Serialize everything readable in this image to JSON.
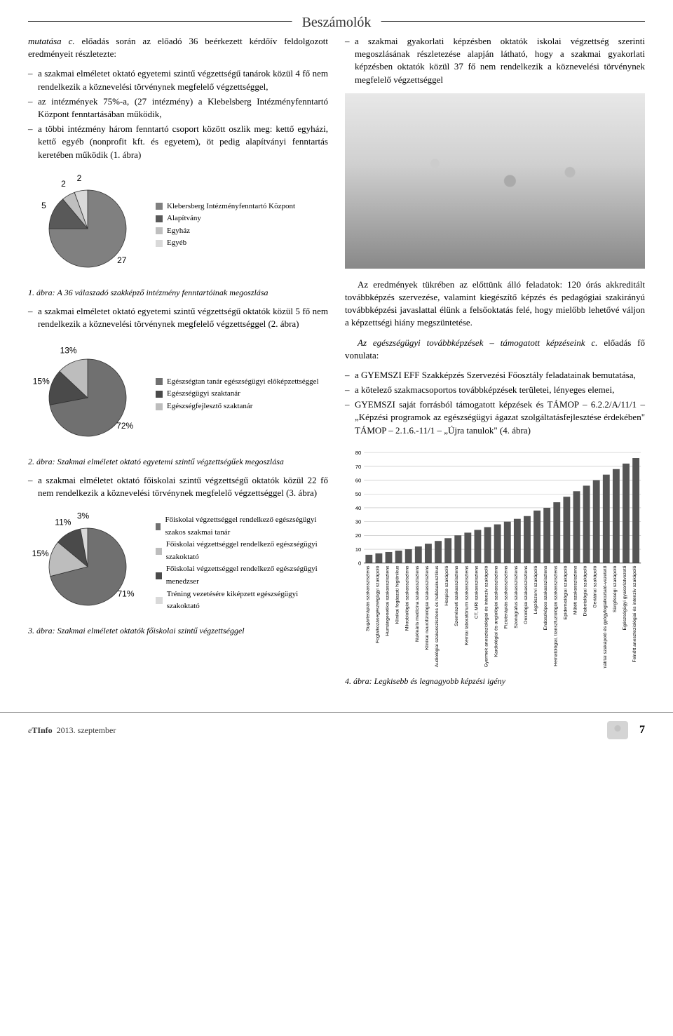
{
  "header": {
    "section_title": "Beszámolók"
  },
  "left": {
    "intro_run_in": "mutatása c.",
    "intro": "előadás során az előadó 36 beérkezett kérdőív feldolgozott eredményeit részletezte:",
    "bullets_a": [
      "a szakmai elméletet oktató egyetemi szintű végzettségű tanárok közül 4 fő nem rendelkezik a köznevelési törvénynek megfelelő végzettséggel,",
      "az intézmények 75%-a, (27 intézmény) a Klebelsberg Intézményfenntartó Központ fenntartásában működik,",
      "a többi intézmény három fenntartó csoport között oszlik meg: kettő egyházi, kettő egyéb (nonprofit kft. és egyetem), öt pedig alapítványi fenntartás keretében működik (1. ábra)"
    ],
    "pie1": {
      "type": "pie",
      "slices": [
        {
          "label": "Klebersberg Intézményfenntartó Központ",
          "value": 27,
          "color": "#808080",
          "tag": "27"
        },
        {
          "label": "Alapítvány",
          "value": 5,
          "color": "#595959",
          "tag": "5"
        },
        {
          "label": "Egyház",
          "value": 2,
          "color": "#bfbfbf",
          "tag": "2"
        },
        {
          "label": "Egyéb",
          "value": 2,
          "color": "#d9d9d9",
          "tag": "2"
        }
      ],
      "background_color": "#ffffff",
      "border_color": "#444444",
      "label_fontsize": 11
    },
    "caption1": "1. ábra: A 36 válaszadó szakképző intézmény fenntartóinak megoszlása",
    "bullets_b": [
      "a szakmai elméletet oktató egyetemi szintű végzettségű oktatók közül 5 fő nem rendelkezik a köznevelési törvénynek megfelelő végzettséggel (2. ábra)"
    ],
    "pie2": {
      "type": "pie",
      "slices": [
        {
          "label": "Egészségtan tanár egészségügyi előképzettséggel",
          "value": 72,
          "color": "#707070",
          "tag": "72%"
        },
        {
          "label": "Egészségügyi szaktanár",
          "value": 15,
          "color": "#4a4a4a",
          "tag": "15%"
        },
        {
          "label": "Egészségfejlesztő szaktanár",
          "value": 13,
          "color": "#bdbdbd",
          "tag": "13%"
        }
      ],
      "background_color": "#ffffff",
      "border_color": "#444444",
      "label_fontsize": 11
    },
    "caption2": "2. ábra: Szakmai elméletet oktató egyetemi szintű végzettségűek megoszlása",
    "bullets_c": [
      "a szakmai elméletet oktató főiskolai szintű végzettségű oktatók közül 22 fő nem rendelkezik a köznevelési törvénynek megfelelő végzettséggel (3. ábra)"
    ],
    "pie3": {
      "type": "pie",
      "slices": [
        {
          "label": "Főiskolai végzettséggel rendelkező egészségügyi szakos szakmai tanár",
          "value": 71,
          "color": "#707070",
          "tag": "71%"
        },
        {
          "label": "Főiskolai végzettséggel rendelkező egészségügyi szakoktató",
          "value": 15,
          "color": "#bdbdbd",
          "tag": "15%"
        },
        {
          "label": "Főiskolai végzettséggel rendelkező egészségügyi menedzser",
          "value": 11,
          "color": "#4a4a4a",
          "tag": "11%"
        },
        {
          "label": "Tréning vezetésére kiképzett egészségügyi szakoktató",
          "value": 3,
          "color": "#d9d9d9",
          "tag": "3%"
        }
      ],
      "background_color": "#ffffff",
      "border_color": "#444444",
      "label_fontsize": 11
    },
    "caption3": "3. ábra: Szakmai elméletet oktatók főiskolai szintű végzettséggel"
  },
  "right": {
    "bullets_top": [
      "a szakmai gyakorlati képzésben oktatók iskolai végzettség szerinti megoszlásának részletezése alapján látható, hogy a szakmai gyakorlati képzésben oktatók közül 37 fő nem rendelkezik a köznevelési törvénynek megfelelő végzettséggel"
    ],
    "para1": "Az eredmények tükrében az előttünk álló feladatok: 120 órás akkreditált továbbképzés szervezése, valamint kiegészítő képzés és pedagógiai szakirányú továbbképzési javaslattal élünk a felsőoktatás felé, hogy mielőbb lehetővé váljon a képzettségi hiány megszüntetése.",
    "italic_lead": "Az egészségügyi továbbképzések – támogatott képzéseink c.",
    "italic_tail": " előadás fő vonulata:",
    "bullets_mid": [
      "a GYEMSZI EFF Szakképzés Szervezési Főosztály feladatainak bemutatása,",
      "a kötelező szakmacsoportos továbbképzések területei, lényeges elemei,",
      "GYEMSZI saját forrásból támogatott képzések és TÁMOP – 6.2.2/A/11/1 – „Képzési programok az egészségügyi ágazat szolgáltatásfejlesztése érdekében\" TÁMOP – 2.1.6.-11/1 – „Újra tanulok\" (4. ábra)"
    ],
    "bar": {
      "type": "bar",
      "ylim": [
        0,
        80
      ],
      "ytick_step": 10,
      "bar_color": "#555555",
      "grid_color": "#bbbbbb",
      "background_color": "#ffffff",
      "label_fontsize": 7,
      "categories": [
        "Sugárterápiás szakasszisztens",
        "Foglalkozásegészségügyi szakápoló",
        "Humángenetikai szakasszisztens",
        "Klinikai fogászati higiénikus",
        "Mikrobiológiai szakasszisztens",
        "Nukleáris medicina szakasszisztens",
        "Klinikai neurofiziológiai szakasszisztens",
        "Audiológiai szakasszisztens és hallásakusztikus",
        "Hospice szakápoló",
        "Szemészeti szakasszisztens",
        "Kémiai laboratóriumi szakasszisztens",
        "CT, MRI szakasszisztens",
        "Gyermek aneszteziológiai és intenzív szakápoló",
        "Kardiológiai és angiológiai szakasszisztens",
        "Fizioterápiás szakasszisztens",
        "Szonográfus szakasszisztens",
        "Onkológiai szakasszisztens",
        "Légzőszervi szakápoló",
        "Endoszkópos szakasszisztens",
        "Hematológiai, transzfuziológiai szakasszisztens",
        "Epidemiológiai szakápoló",
        "Műtéti szakasszisztens",
        "Diabetológiai szakápoló",
        "Geriátriai szakápoló",
        "Pszichiátriai szakápoló és gyógyfoglalkoztató-vezetető",
        "Sürgősségi szakápoló",
        "Egészségügyi gyakorlatvezető",
        "Felnőtt aneszteziológiai és intenzív szakápoló"
      ],
      "values": [
        6,
        7,
        8,
        9,
        10,
        12,
        14,
        16,
        18,
        20,
        22,
        24,
        26,
        28,
        30,
        32,
        34,
        38,
        40,
        44,
        48,
        52,
        56,
        60,
        64,
        68,
        72,
        76
      ]
    },
    "caption4": "4. ábra: Legkisebb és legnagyobb képzési igény"
  },
  "footer": {
    "brand_prefix": "e",
    "brand": "TInfo",
    "date": "2013. szeptember",
    "page": "7"
  },
  "colors": {
    "text": "#000000",
    "rule": "#444444",
    "pie_stroke": "#333333"
  }
}
